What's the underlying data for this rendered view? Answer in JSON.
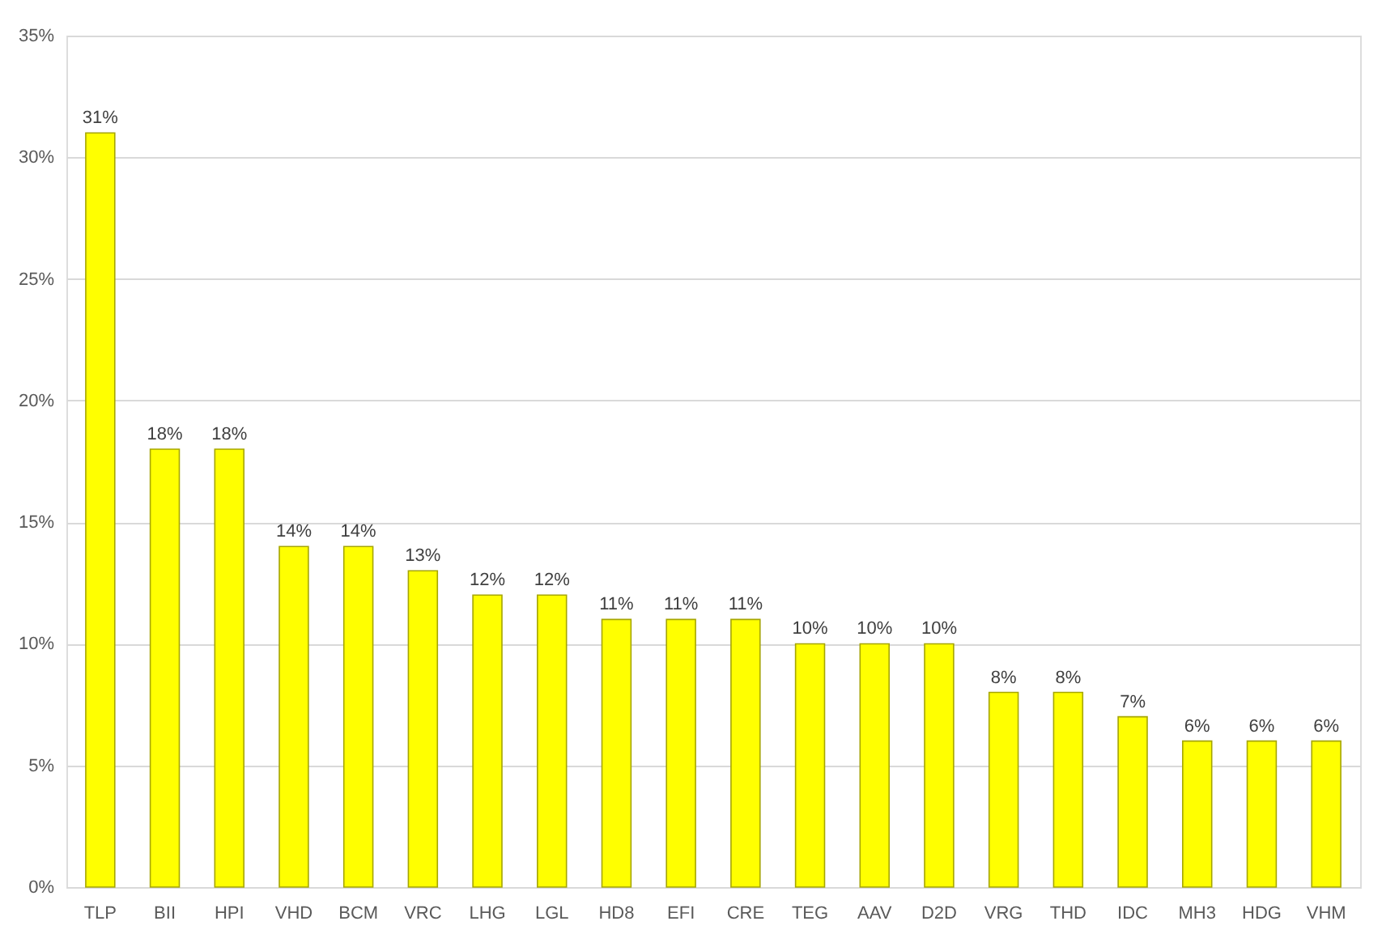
{
  "chart_data": {
    "type": "bar",
    "categories": [
      "TLP",
      "BII",
      "HPI",
      "VHD",
      "BCM",
      "VRC",
      "LHG",
      "LGL",
      "HD8",
      "EFI",
      "CRE",
      "TEG",
      "AAV",
      "D2D",
      "VRG",
      "THD",
      "IDC",
      "MH3",
      "HDG",
      "VHM"
    ],
    "values": [
      31,
      18,
      18,
      14,
      14,
      13,
      12,
      12,
      11,
      11,
      11,
      10,
      10,
      10,
      8,
      8,
      7,
      6,
      6,
      6
    ],
    "value_labels": [
      "31%",
      "18%",
      "18%",
      "14%",
      "14%",
      "13%",
      "12%",
      "12%",
      "11%",
      "11%",
      "11%",
      "10%",
      "10%",
      "10%",
      "8%",
      "8%",
      "7%",
      "6%",
      "6%",
      "6%"
    ],
    "color": "#ffff00",
    "ylim": [
      0,
      35
    ],
    "yticks": [
      {
        "value": 0,
        "label": "0%"
      },
      {
        "value": 5,
        "label": "5%"
      },
      {
        "value": 10,
        "label": "10%"
      },
      {
        "value": 15,
        "label": "15%"
      },
      {
        "value": 20,
        "label": "20%"
      },
      {
        "value": 25,
        "label": "25%"
      },
      {
        "value": 30,
        "label": "30%"
      },
      {
        "value": 35,
        "label": "35%"
      }
    ],
    "grid": "y"
  }
}
